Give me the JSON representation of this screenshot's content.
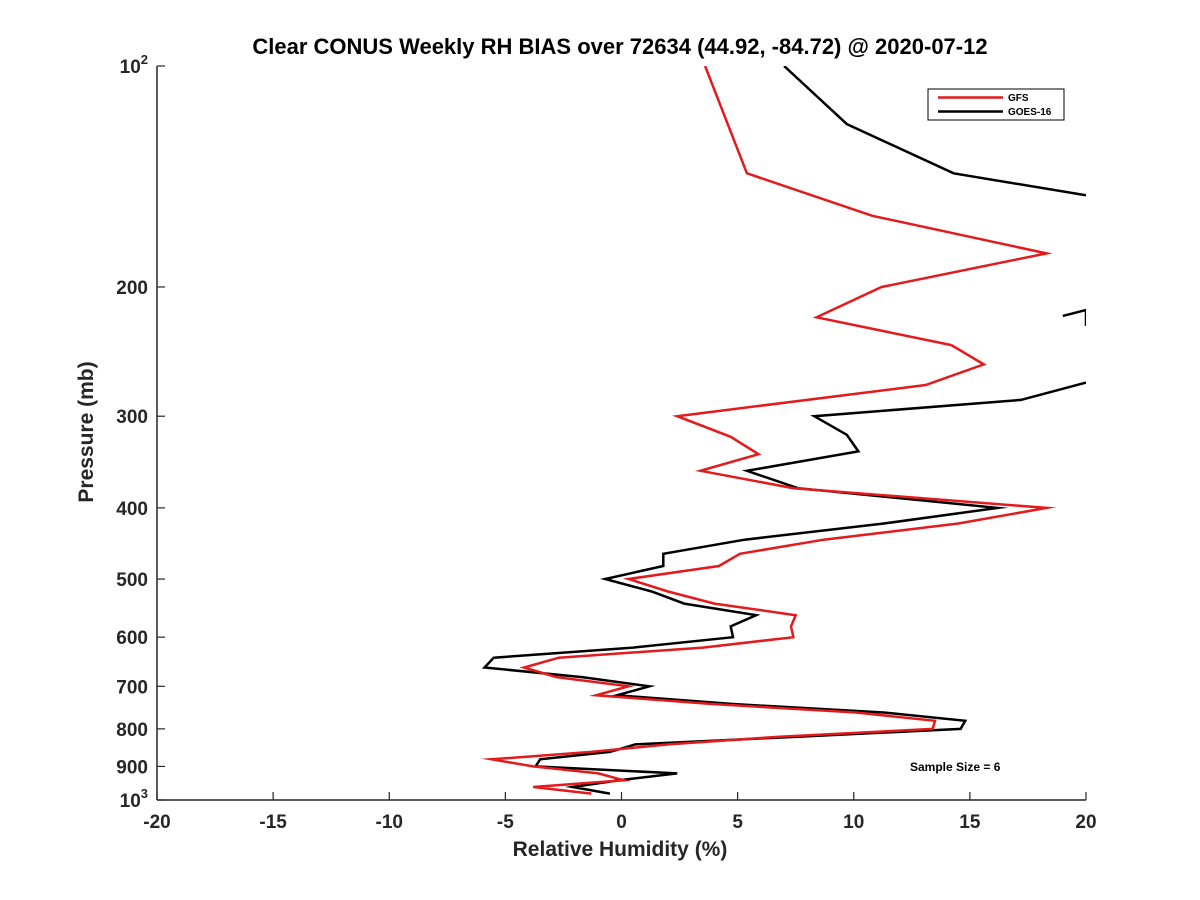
{
  "chart_data": {
    "type": "line",
    "title": "Clear CONUS Weekly RH BIAS over 72634 (44.92, -84.72) @ 2020-07-12",
    "xlabel": "Relative Humidity (%)",
    "ylabel": "Pressure (mb)",
    "xlim": [
      -20,
      20
    ],
    "ylim": [
      100,
      1000
    ],
    "yscale": "log",
    "yreversed": true,
    "x_ticks": [
      -20,
      -15,
      -10,
      -5,
      0,
      5,
      10,
      15,
      20
    ],
    "x_tick_labels": [
      "-20",
      "-15",
      "-10",
      "-5",
      "0",
      "5",
      "10",
      "15",
      "20"
    ],
    "y_ticks": [
      {
        "value": 100,
        "base": "10",
        "exp": "2"
      },
      {
        "value": 200,
        "base": "200",
        "exp": ""
      },
      {
        "value": 300,
        "base": "300",
        "exp": ""
      },
      {
        "value": 400,
        "base": "400",
        "exp": ""
      },
      {
        "value": 500,
        "base": "500",
        "exp": ""
      },
      {
        "value": 600,
        "base": "600",
        "exp": ""
      },
      {
        "value": 700,
        "base": "700",
        "exp": ""
      },
      {
        "value": 800,
        "base": "800",
        "exp": ""
      },
      {
        "value": 900,
        "base": "900",
        "exp": ""
      },
      {
        "value": 1000,
        "base": "10",
        "exp": "3"
      }
    ],
    "legend": {
      "position": "top-right",
      "entries": [
        "GFS",
        "GOES-16"
      ]
    },
    "annotation": "Sample Size = 6",
    "series": [
      {
        "name": "GFS",
        "color": "#e41a1c",
        "points": [
          [
            3.6,
            100
          ],
          [
            5.4,
            140
          ],
          [
            10.8,
            160
          ],
          [
            18.3,
            180
          ],
          [
            11.2,
            200
          ],
          [
            8.4,
            220
          ],
          [
            14.2,
            240
          ],
          [
            15.6,
            255
          ],
          [
            13.1,
            272
          ],
          [
            2.4,
            300
          ],
          [
            4.7,
            320
          ],
          [
            5.9,
            338
          ],
          [
            3.4,
            356
          ],
          [
            7.4,
            376
          ],
          [
            18.3,
            400
          ],
          [
            14.5,
            420
          ],
          [
            8.7,
            442
          ],
          [
            5.1,
            462
          ],
          [
            4.2,
            480
          ],
          [
            0.3,
            500
          ],
          [
            2.0,
            520
          ],
          [
            4.0,
            540
          ],
          [
            7.5,
            560
          ],
          [
            7.3,
            580
          ],
          [
            7.4,
            600
          ],
          [
            3.5,
            620
          ],
          [
            -2.7,
            640
          ],
          [
            -4.2,
            660
          ],
          [
            -2.8,
            680
          ],
          [
            0.3,
            700
          ],
          [
            -1.1,
            720
          ],
          [
            3.9,
            740
          ],
          [
            10.1,
            760
          ],
          [
            13.5,
            780
          ],
          [
            13.4,
            800
          ],
          [
            6.8,
            820
          ],
          [
            2.0,
            840
          ],
          [
            -1.3,
            860
          ],
          [
            -5.6,
            880
          ],
          [
            -3.8,
            900
          ],
          [
            -1.0,
            920
          ],
          [
            0.1,
            940
          ],
          [
            -3.8,
            960
          ],
          [
            -1.3,
            980
          ]
        ]
      },
      {
        "name": "GOES-16",
        "color": "#000000",
        "segments": [
          [
            [
              7.0,
              100
            ],
            [
              9.7,
              120
            ],
            [
              14.3,
              140
            ],
            [
              20.0,
              150
            ]
          ],
          [
            [
              19.0,
              219
            ],
            [
              20.0,
              215
            ],
            [
              20.0,
              226
            ]
          ],
          [
            [
              20.0,
              270
            ],
            [
              17.2,
              285
            ],
            [
              8.3,
              300
            ],
            [
              9.7,
              318
            ],
            [
              10.2,
              335
            ],
            [
              5.4,
              356
            ],
            [
              7.6,
              376
            ],
            [
              16.2,
              400
            ],
            [
              11.3,
              420
            ],
            [
              5.3,
              442
            ],
            [
              1.8,
              462
            ],
            [
              1.8,
              480
            ],
            [
              -0.7,
              500
            ],
            [
              1.3,
              520
            ],
            [
              2.7,
              540
            ],
            [
              5.8,
              560
            ],
            [
              4.7,
              580
            ],
            [
              4.8,
              600
            ],
            [
              0.5,
              620
            ],
            [
              -5.5,
              640
            ],
            [
              -5.9,
              660
            ],
            [
              -1.7,
              680
            ],
            [
              1.2,
              700
            ],
            [
              -0.2,
              720
            ],
            [
              4.8,
              740
            ],
            [
              11.3,
              760
            ],
            [
              14.8,
              780
            ],
            [
              14.6,
              800
            ],
            [
              7.6,
              820
            ],
            [
              0.6,
              840
            ],
            [
              -0.5,
              860
            ],
            [
              -3.5,
              880
            ],
            [
              -3.7,
              900
            ],
            [
              2.4,
              920
            ],
            [
              -0.1,
              940
            ],
            [
              -2.1,
              960
            ],
            [
              -0.5,
              980
            ]
          ]
        ]
      }
    ]
  }
}
